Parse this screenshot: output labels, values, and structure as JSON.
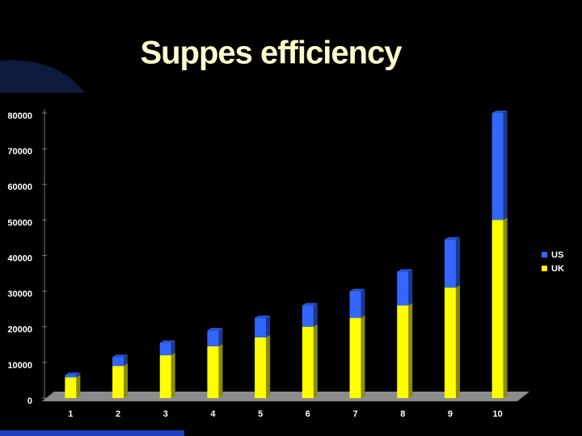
{
  "chart_data": {
    "type": "stacked-bar",
    "title": "Suppes efficiency",
    "categories": [
      "1",
      "2",
      "3",
      "4",
      "5",
      "6",
      "7",
      "8",
      "9",
      "10"
    ],
    "series": [
      {
        "name": "UK",
        "color": "#ffff00",
        "values": [
          5800,
          9000,
          12000,
          14500,
          17000,
          20000,
          22500,
          26000,
          31000,
          50000
        ]
      },
      {
        "name": "US",
        "color": "#3366ff",
        "values": [
          700,
          2500,
          3500,
          4500,
          5500,
          6000,
          7500,
          9500,
          13500,
          30000
        ]
      }
    ],
    "ylim": [
      0,
      80000
    ],
    "yticks": [
      0,
      10000,
      20000,
      30000,
      40000,
      50000,
      60000,
      70000,
      80000
    ],
    "legend": "right"
  }
}
